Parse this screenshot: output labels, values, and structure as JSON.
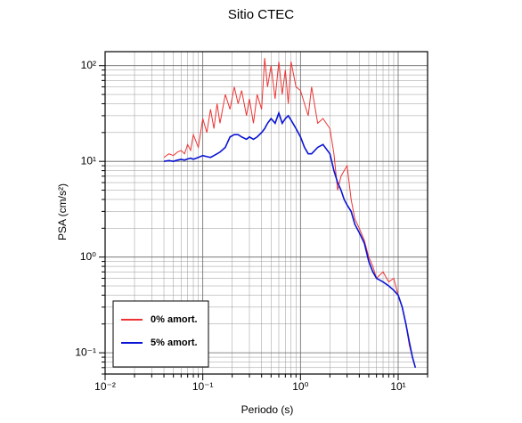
{
  "chart_data": {
    "type": "line",
    "title": "Sitio CTEC",
    "x_label": "Periodo (s)",
    "y_label": "PSA (cm/s²)",
    "xscale": "log",
    "yscale": "log",
    "grid": true,
    "minor_grid": true,
    "legend_position": "lower left",
    "xlim": [
      0.01,
      20
    ],
    "ylim": [
      0.06,
      140
    ],
    "xticks": [
      {
        "value": 0.01,
        "label": "10⁻²"
      },
      {
        "value": 0.1,
        "label": "10⁻¹"
      },
      {
        "value": 1,
        "label": "10⁰"
      },
      {
        "value": 10,
        "label": "10¹"
      }
    ],
    "yticks": [
      {
        "value": 0.1,
        "label": "10⁻¹"
      },
      {
        "value": 1,
        "label": "10⁰"
      },
      {
        "value": 10,
        "label": "10¹"
      },
      {
        "value": 100,
        "label": "10²"
      }
    ],
    "x": [
      0.04,
      0.045,
      0.05,
      0.055,
      0.06,
      0.065,
      0.07,
      0.075,
      0.08,
      0.09,
      0.1,
      0.11,
      0.12,
      0.13,
      0.14,
      0.15,
      0.17,
      0.19,
      0.21,
      0.23,
      0.25,
      0.28,
      0.3,
      0.33,
      0.36,
      0.4,
      0.43,
      0.46,
      0.5,
      0.55,
      0.6,
      0.65,
      0.7,
      0.75,
      0.8,
      0.9,
      1.0,
      1.1,
      1.2,
      1.3,
      1.5,
      1.7,
      2.0,
      2.2,
      2.4,
      2.6,
      2.8,
      3.0,
      3.3,
      3.6,
      4.0,
      4.5,
      5.0,
      5.5,
      6.0,
      7.0,
      8.0,
      9.0,
      10,
      11,
      12,
      13,
      14,
      15
    ],
    "series": [
      {
        "name": "0% amort.",
        "color": "#ee3333",
        "width": 1,
        "values": [
          11,
          12,
          11.5,
          12.5,
          13,
          12,
          15,
          13,
          19,
          14,
          28,
          20,
          35,
          22,
          40,
          25,
          50,
          35,
          60,
          40,
          55,
          30,
          45,
          25,
          50,
          35,
          120,
          60,
          100,
          45,
          110,
          50,
          90,
          40,
          110,
          60,
          55,
          40,
          30,
          60,
          25,
          28,
          22,
          12,
          5,
          7,
          8,
          9,
          4,
          2.5,
          2.0,
          1.5,
          1.0,
          0.8,
          0.6,
          0.7,
          0.55,
          0.6,
          0.4,
          0.3,
          0.2,
          0.12,
          0.09,
          0.07
        ]
      },
      {
        "name": "5% amort.",
        "color": "#0a14d4",
        "width": 1.6,
        "values": [
          10,
          10.2,
          10,
          10.3,
          10.5,
          10.3,
          10.6,
          10.8,
          10.5,
          11,
          11.5,
          11.2,
          11,
          11.5,
          12,
          12.5,
          14,
          18,
          19,
          19,
          18,
          17,
          18,
          17,
          18,
          20,
          22,
          25,
          28,
          25,
          32,
          25,
          28,
          30,
          27,
          22,
          18,
          14,
          12,
          12,
          14,
          15,
          12,
          8,
          6,
          5,
          4,
          3.5,
          3,
          2.2,
          1.8,
          1.4,
          0.9,
          0.7,
          0.6,
          0.55,
          0.5,
          0.45,
          0.4,
          0.3,
          0.2,
          0.13,
          0.09,
          0.07
        ]
      }
    ]
  }
}
